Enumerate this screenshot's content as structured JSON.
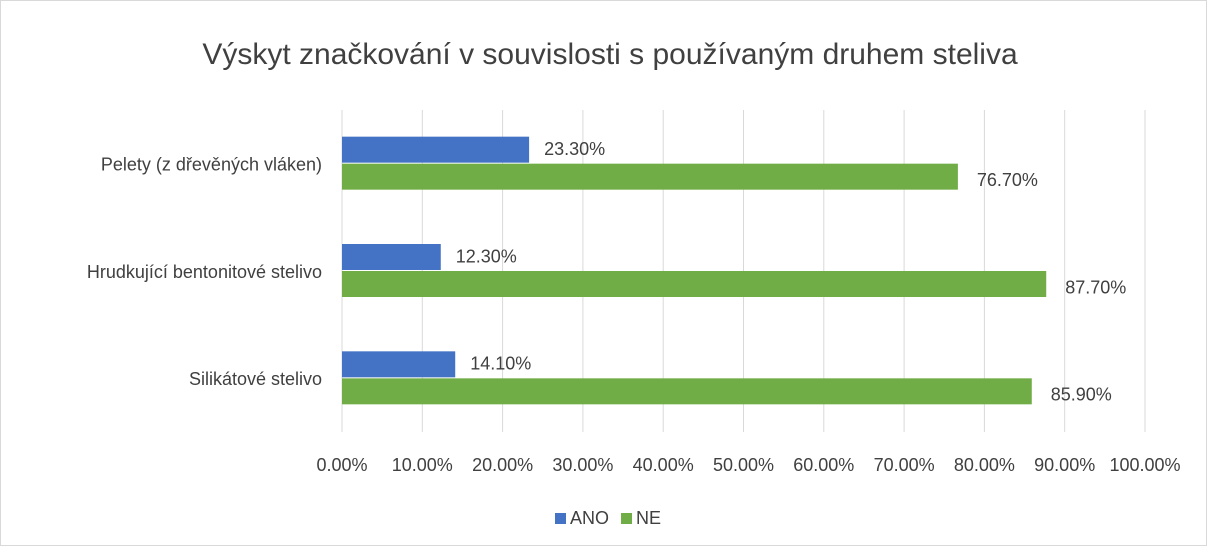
{
  "chart_data": {
    "type": "hbar",
    "title": "Výskyt značkování v souvislosti s používaným druhem steliva",
    "categories": [
      "Pelety (z dřevěných vláken)",
      "Hrudkující bentonitové stelivo",
      "Silikátové stelivo"
    ],
    "series": [
      {
        "name": "ANO",
        "color": "#4472c4",
        "values": [
          23.3,
          12.3,
          14.1
        ],
        "value_labels": [
          "23.30%",
          "12.30%",
          "14.10%"
        ]
      },
      {
        "name": "NE",
        "color": "#70ad47",
        "values": [
          76.7,
          87.7,
          85.9
        ],
        "value_labels": [
          "76.70%",
          "87.70%",
          "85.90%"
        ]
      }
    ],
    "xlim": [
      0,
      100
    ],
    "xticks": [
      {
        "value": 0,
        "label": "0.00%"
      },
      {
        "value": 10,
        "label": "10.00%"
      },
      {
        "value": 20,
        "label": "20.00%"
      },
      {
        "value": 30,
        "label": "30.00%"
      },
      {
        "value": 40,
        "label": "40.00%"
      },
      {
        "value": 50,
        "label": "50.00%"
      },
      {
        "value": 60,
        "label": "60.00%"
      },
      {
        "value": 70,
        "label": "70.00%"
      },
      {
        "value": 80,
        "label": "80.00%"
      },
      {
        "value": 90,
        "label": "90.00%"
      },
      {
        "value": 100,
        "label": "100.00%"
      }
    ],
    "grid": true,
    "legend": "bottom"
  }
}
